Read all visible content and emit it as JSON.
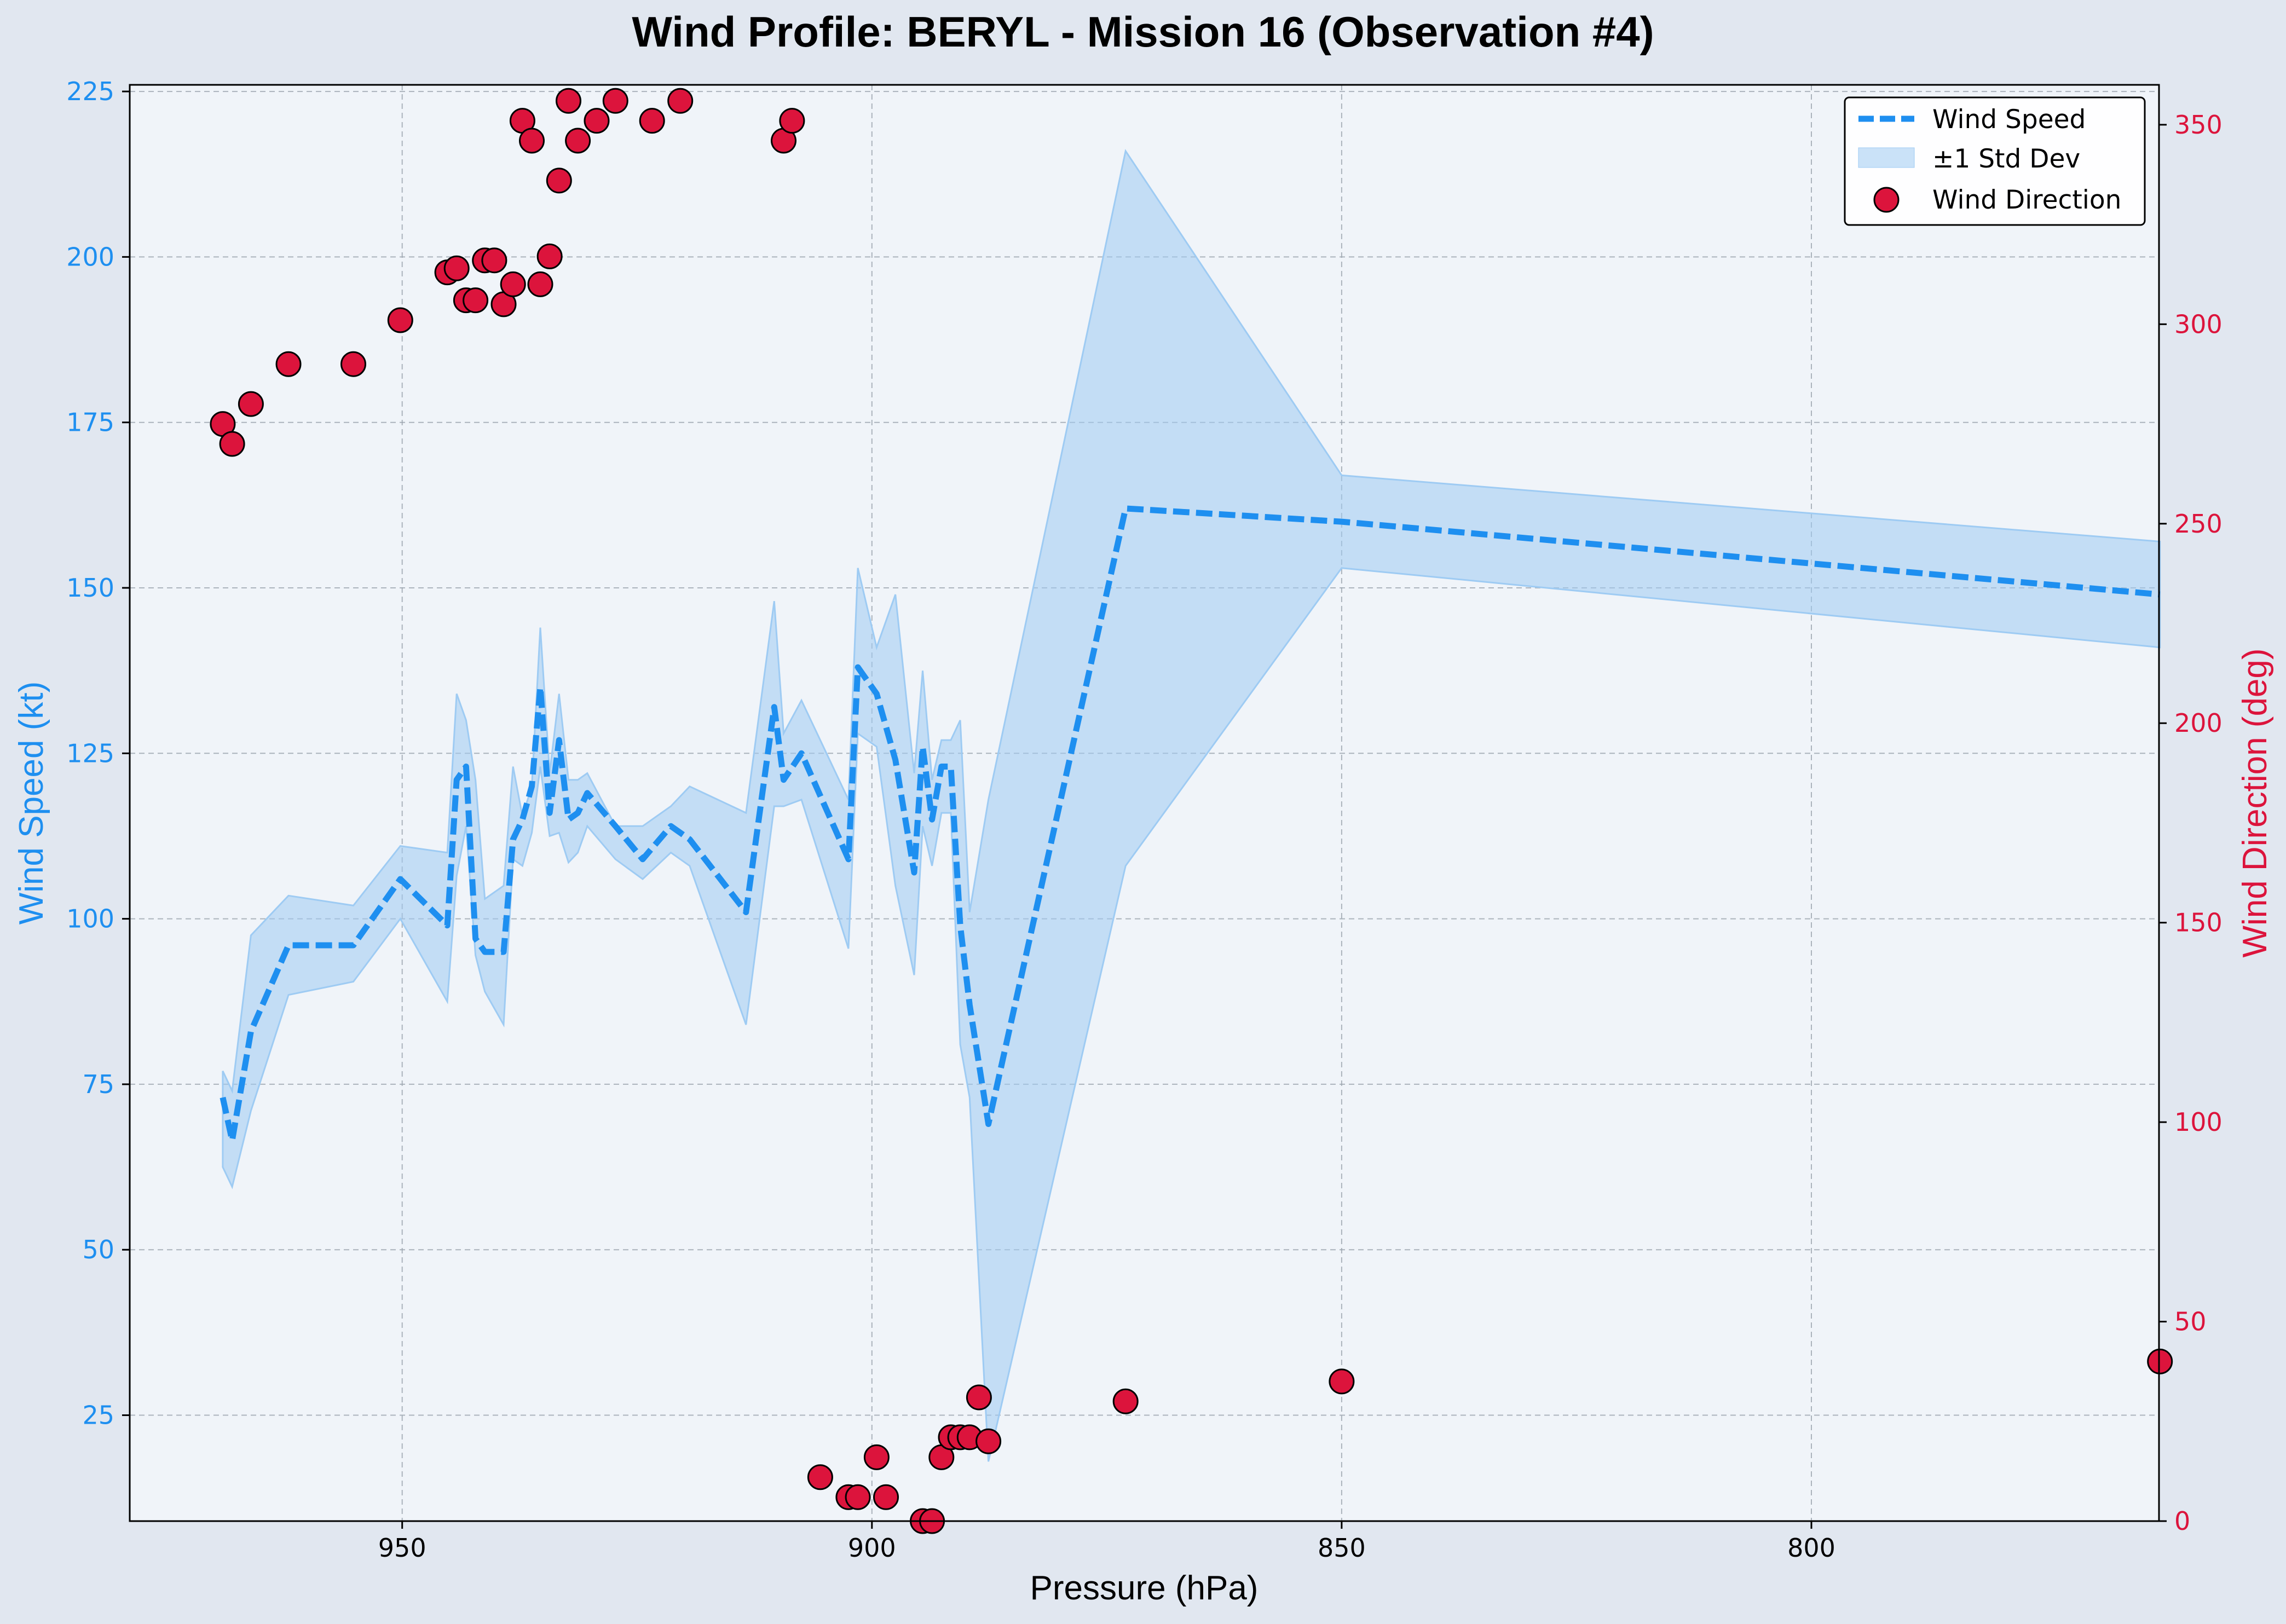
{
  "chart_data": {
    "type": "line",
    "title": "Wind Profile: BERYL - Mission 16 (Observation #4)",
    "xlabel": "Pressure (hPa)",
    "ylabel": "Wind Speed (kt)",
    "y2label": "Wind Direction (deg)",
    "xlim": [
      979,
      763
    ],
    "x_inverted": true,
    "ylim": [
      9,
      226
    ],
    "y2lim": [
      0,
      360
    ],
    "xticks": [
      950,
      900,
      850,
      800
    ],
    "yticks": [
      25,
      50,
      75,
      100,
      125,
      150,
      175,
      200,
      225
    ],
    "y2ticks": [
      0,
      50,
      100,
      150,
      200,
      250,
      300,
      350
    ],
    "grid": true,
    "legend_position": "top-right",
    "colors": {
      "wind_speed": "#1e8ff0",
      "std_fill": "#9ecbf3",
      "wind_direction": "#dc143c",
      "left_axis": "#1e8ff0",
      "right_axis": "#dc143c",
      "plot_bg": "#f0f4f9",
      "figure_bg": "#e1e7f0"
    },
    "legend": [
      "Wind Speed",
      "±1 Std Dev",
      "Wind Direction"
    ],
    "series": [
      {
        "name": "Wind Speed",
        "axis": "left",
        "style": "dashed",
        "x": [
          969.1,
          968.1,
          966.1,
          962.1,
          955.2,
          950.2,
          945.2,
          944.2,
          943.2,
          942.2,
          941.2,
          939.2,
          938.2,
          937.2,
          936.2,
          935.3,
          934.3,
          933.3,
          932.3,
          931.3,
          930.3,
          927.3,
          924.4,
          921.4,
          919.4,
          913.4,
          910.4,
          909.4,
          907.5,
          902.5,
          901.5,
          899.5,
          897.5,
          895.5,
          894.6,
          893.6,
          892.6,
          891.6,
          890.6,
          889.6,
          887.6,
          873.0,
          850.0,
          762.9
        ],
        "values": [
          73.0,
          66.5,
          83.0,
          96.0,
          96.0,
          106.0,
          99.0,
          121.0,
          123.0,
          97.0,
          95.0,
          95.0,
          112.0,
          115.0,
          120.0,
          135.0,
          116.0,
          127.0,
          115.0,
          116.0,
          119.0,
          114.0,
          109.0,
          114.0,
          112.0,
          101.0,
          132.0,
          121.0,
          125.0,
          109.0,
          138.0,
          134.0,
          124.0,
          107.0,
          126.0,
          115.0,
          123.0,
          123.0,
          99.0,
          87.0,
          69.0,
          162.0,
          160.0,
          149.0
        ]
      },
      {
        "name": "±1 Std Dev",
        "axis": "left",
        "upper": [
          77.0,
          74.0,
          97.5,
          103.5,
          102.0,
          111.0,
          110.0,
          134.0,
          130.0,
          121.0,
          103.0,
          105.0,
          123.0,
          115.5,
          120.0,
          144.0,
          122.0,
          134.0,
          121.0,
          121.0,
          122.0,
          114.0,
          114.0,
          117.0,
          120.0,
          116.0,
          148.0,
          128.0,
          133.0,
          118.0,
          153.0,
          141.0,
          149.0,
          122.0,
          137.5,
          121.0,
          127.0,
          127.0,
          130.0,
          101.0,
          118.0,
          216.0,
          167.0,
          157.0
        ],
        "lower": [
          62.5,
          59.5,
          71.0,
          88.5,
          90.5,
          100.0,
          87.5,
          106.5,
          114.0,
          94.5,
          89.0,
          84.0,
          109.0,
          108.0,
          113.0,
          123.0,
          112.5,
          113.0,
          108.5,
          110.0,
          114.0,
          109.0,
          106.0,
          110.0,
          108.0,
          84.0,
          117.0,
          117.0,
          118.0,
          95.5,
          128.0,
          126.0,
          105.0,
          91.5,
          114.0,
          108.0,
          116.0,
          116.0,
          81.0,
          73.0,
          18.0,
          108.0,
          153.0,
          141.0
        ]
      },
      {
        "name": "Wind Direction",
        "axis": "right",
        "style": "markers",
        "x": [
          969.1,
          968.1,
          966.1,
          962.1,
          955.2,
          950.2,
          945.2,
          944.2,
          943.2,
          942.2,
          941.2,
          940.2,
          939.2,
          938.2,
          937.2,
          936.2,
          935.3,
          934.3,
          933.3,
          932.3,
          931.3,
          929.3,
          927.3,
          923.4,
          920.4,
          909.4,
          908.5,
          905.5,
          902.5,
          901.5,
          899.5,
          898.5,
          894.6,
          893.6,
          892.6,
          891.6,
          890.6,
          889.6,
          888.6,
          887.6,
          873.0,
          850.0,
          762.9
        ],
        "values": [
          275.0,
          270.0,
          280.0,
          290.0,
          290.0,
          301.0,
          313.0,
          314.0,
          306.0,
          306.0,
          316.0,
          316.0,
          305.0,
          310.0,
          351.0,
          346.0,
          310.0,
          317.0,
          336.0,
          356.0,
          346.0,
          351.0,
          356.0,
          351.0,
          356.0,
          346.0,
          351.0,
          11.0,
          6.0,
          6.0,
          16.0,
          6.0,
          0.0,
          0.0,
          16.0,
          21.0,
          21.0,
          21.0,
          31.0,
          20.0,
          30.0,
          35.0,
          40.0
        ]
      }
    ]
  }
}
